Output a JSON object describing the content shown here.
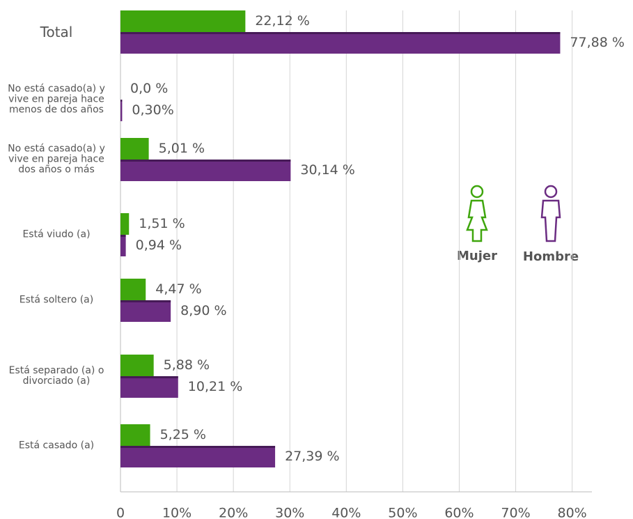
{
  "chart_data": {
    "type": "hbar",
    "categories": [
      "Total",
      "No está casado(a) y vive en pareja hace menos de dos años",
      "No está casado(a) y vive en pareja hace dos años o más",
      "Está viudo (a)",
      "Está soltero (a)",
      "Está separado (a) o divorciado (a)",
      "Está casado (a)"
    ],
    "series": [
      {
        "name": "Mujer",
        "color": "#3fa60d",
        "values": [
          22.12,
          0.0,
          5.01,
          1.51,
          4.47,
          5.88,
          5.25
        ],
        "value_labels": [
          "22,12 %",
          "0,0 %",
          "5,01 %",
          "1,51 %",
          "4,47 %",
          "5,88 %",
          "5,25 %"
        ]
      },
      {
        "name": "Hombre",
        "color": "#6b2c82",
        "values": [
          77.88,
          0.3,
          30.14,
          0.94,
          8.9,
          10.21,
          27.39
        ],
        "value_labels": [
          "77,88 %",
          "0,30%",
          "30,14 %",
          "0,94 %",
          "8,90 %",
          "10,21 %",
          "27,39 %"
        ]
      }
    ],
    "xlim": [
      0,
      83.5
    ],
    "xticks": [
      0,
      {
        "value": 10,
        "label": "10%"
      },
      {
        "value": 20,
        "label": "20%"
      },
      {
        "value": 30,
        "label": "30%"
      },
      {
        "value": 40,
        "label": "40%"
      },
      {
        "value": 50,
        "label": "50%"
      },
      {
        "value": 60,
        "label": "60%"
      },
      {
        "value": 70,
        "label": "70%"
      },
      {
        "value": 80,
        "label": "80%"
      }
    ],
    "grid": true
  }
}
